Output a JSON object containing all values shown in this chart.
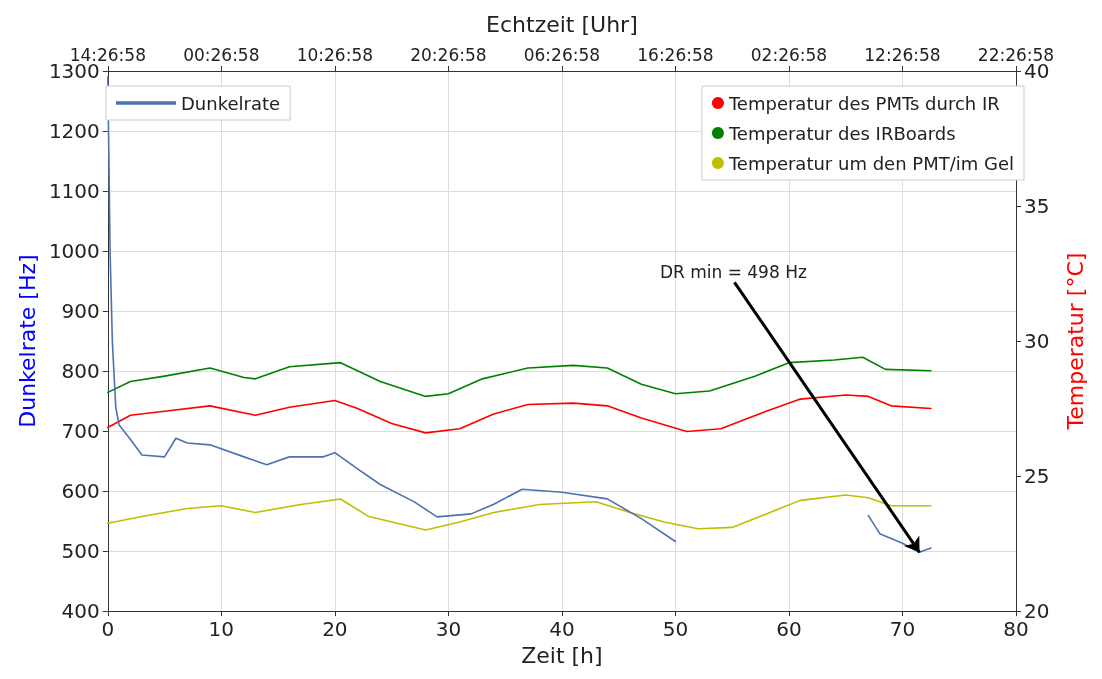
{
  "chart_data": {
    "type": "line",
    "xlabel": "Zeit [h]",
    "ylabel": "Dunkelrate [Hz]",
    "y2label": "Temperatur [°C]",
    "x2label": "Echtzeit [Uhr]",
    "xlim": [
      0,
      80
    ],
    "xticks": [
      0,
      10,
      20,
      30,
      40,
      50,
      60,
      70,
      80
    ],
    "x2lim": [
      "--01-01T14:26:58",
      "--01-04T22:26:58"
    ],
    "x2ticks": [
      {
        "value": "--01-01T14:26:58",
        "label": "14:26:58"
      },
      {
        "value": "--01-02T00:26:58",
        "label": "00:26:58"
      },
      {
        "value": "--01-02T10:26:58",
        "label": "10:26:58"
      },
      {
        "value": "--01-02T20:26:58",
        "label": "20:26:58"
      },
      {
        "value": "--01-03T06:26:58",
        "label": "06:26:58"
      },
      {
        "value": "--01-03T16:26:58",
        "label": "16:26:58"
      },
      {
        "value": "--01-04T02:26:58",
        "label": "02:26:58"
      },
      {
        "value": "--01-04T12:26:58",
        "label": "12:26:58"
      },
      {
        "value": "--01-04T22:26:58",
        "label": "22:26:58"
      }
    ],
    "ylim": [
      400,
      1300
    ],
    "yticks": [
      400,
      500,
      600,
      700,
      800,
      900,
      1000,
      1100,
      1200,
      1300
    ],
    "y2lim": [
      20,
      40
    ],
    "y2ticks": [
      20,
      25,
      30,
      35,
      40
    ],
    "grid": true,
    "legend": "top",
    "annotations": [
      {
        "text": "DR min = 498 Hz",
        "x": 71.5,
        "y": 498
      }
    ],
    "series": [
      {
        "name": "Dunkelrate",
        "color": "#4c72b0",
        "x": [
          0,
          0.1,
          0.2,
          0.4,
          0.7,
          1,
          2,
          3,
          5,
          6,
          7,
          9,
          12,
          14,
          16,
          19,
          20,
          22,
          24,
          27,
          29,
          32,
          34,
          36.5,
          40,
          44,
          47,
          50,
          58,
          67,
          68,
          70,
          71.5,
          72.5
        ],
        "values": [
          1290,
          1150,
          1000,
          850,
          740,
          710,
          686,
          660,
          657,
          688,
          680,
          677,
          657,
          644,
          657,
          657,
          664,
          637,
          611,
          582,
          557,
          562,
          578,
          603,
          598,
          587,
          554,
          516,
          null,
          559,
          529,
          513,
          498,
          505
        ]
      },
      {
        "name": "Temperatur des PMTs durch IR",
        "color": "#ff0000",
        "axis": "y2",
        "x": [
          0,
          2,
          5,
          9,
          13,
          16,
          20,
          22,
          25,
          28,
          31,
          34,
          37,
          41,
          44,
          47,
          51,
          54,
          58,
          61,
          65,
          67,
          69,
          72.5
        ],
        "values": [
          26.8,
          27.25,
          27.4,
          27.6,
          27.25,
          27.55,
          27.8,
          27.5,
          26.95,
          26.6,
          26.75,
          27.3,
          27.65,
          27.7,
          27.6,
          27.15,
          26.65,
          26.75,
          27.4,
          27.85,
          28.0,
          27.95,
          27.6,
          27.5
        ]
      },
      {
        "name": "Temperatur des IRBoards",
        "color": "#008000",
        "axis": "y2",
        "x": [
          0,
          2,
          5,
          9,
          12,
          13,
          16,
          20.5,
          24,
          28,
          30,
          33,
          37,
          41,
          44,
          47,
          50,
          53,
          57,
          60,
          64,
          66.5,
          68.5,
          72.5
        ],
        "values": [
          28.1,
          28.5,
          28.7,
          29.0,
          28.65,
          28.6,
          29.05,
          29.2,
          28.5,
          27.95,
          28.05,
          28.6,
          29.0,
          29.1,
          29.0,
          28.4,
          28.05,
          28.15,
          28.7,
          29.2,
          29.3,
          29.4,
          28.95,
          28.9
        ]
      },
      {
        "name": "Temperatur um den PMT/im Gel",
        "color": "#bfbf00",
        "axis": "y2",
        "x": [
          0,
          3,
          7,
          10,
          13,
          17,
          20.5,
          23,
          28,
          31,
          34,
          38,
          43,
          46,
          49,
          52,
          55,
          58,
          61,
          65,
          67,
          69,
          72.5
        ],
        "values": [
          23.25,
          23.5,
          23.8,
          23.9,
          23.65,
          23.95,
          24.15,
          23.5,
          23.0,
          23.3,
          23.65,
          23.95,
          24.05,
          23.65,
          23.3,
          23.05,
          23.1,
          23.6,
          24.1,
          24.3,
          24.2,
          23.9,
          23.9
        ]
      }
    ]
  }
}
